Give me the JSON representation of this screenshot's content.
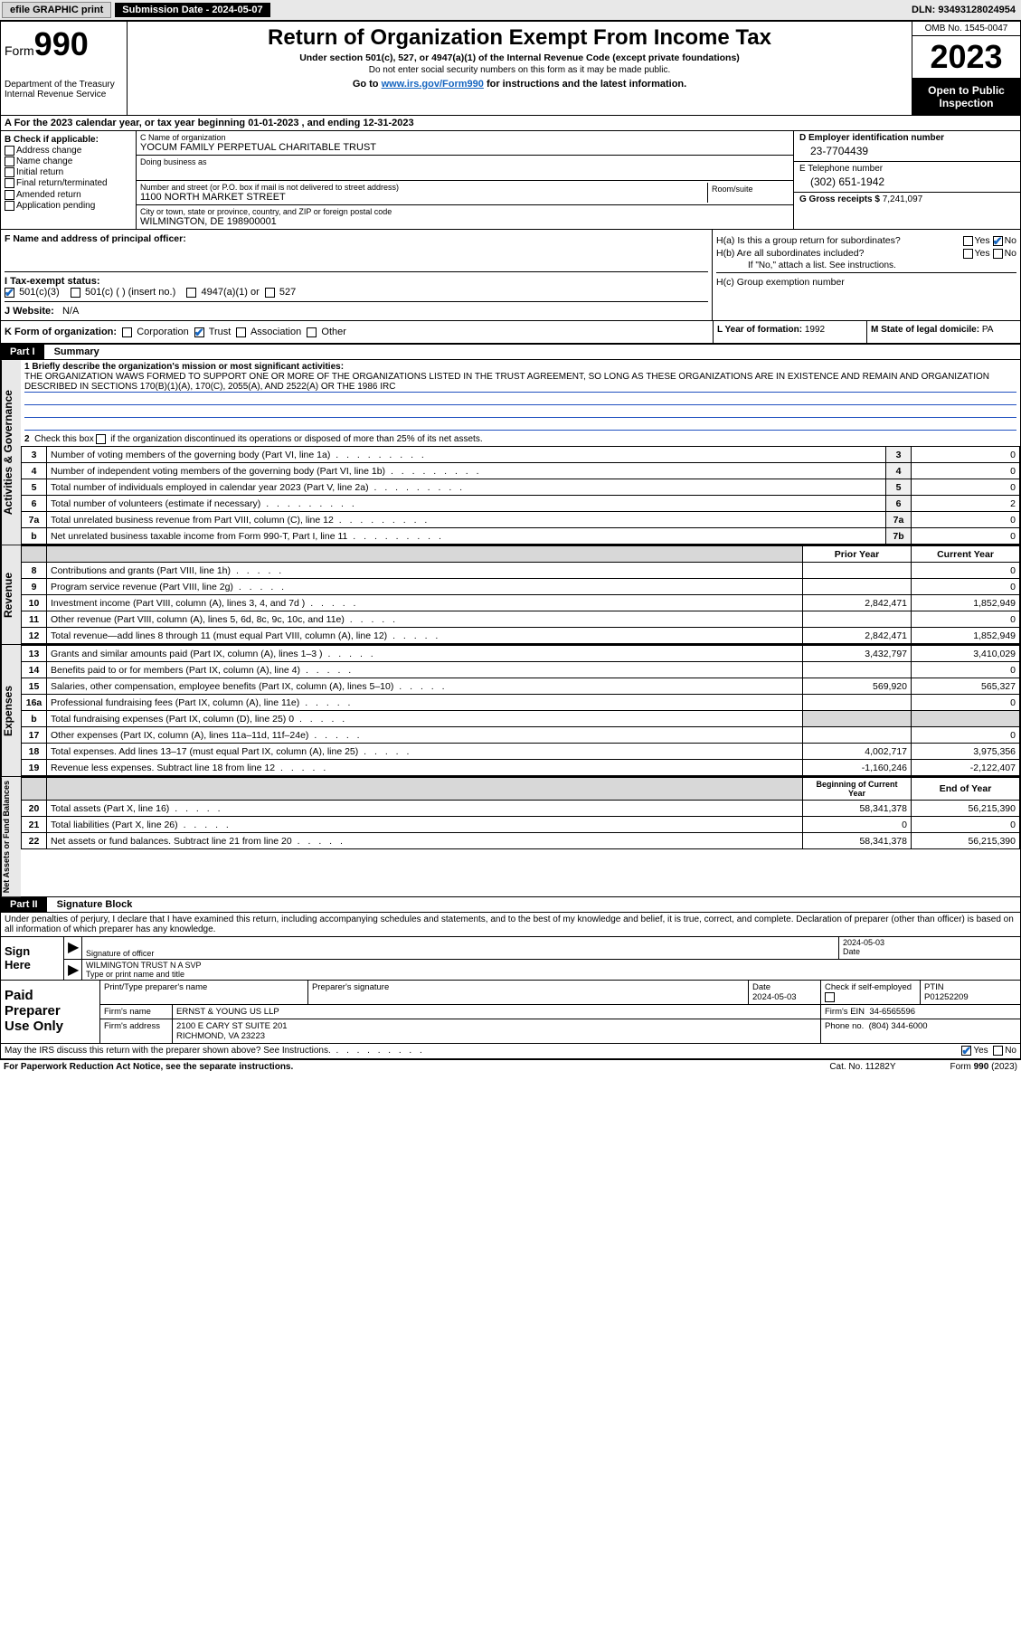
{
  "topbar": {
    "efile": "efile GRAPHIC print",
    "submission": "Submission Date - 2024-05-07",
    "dln": "DLN: 93493128024954"
  },
  "header": {
    "form_label": "Form",
    "form_number": "990",
    "title": "Return of Organization Exempt From Income Tax",
    "subtitle": "Under section 501(c), 527, or 4947(a)(1) of the Internal Revenue Code (except private foundations)",
    "subtitle2": "Do not enter social security numbers on this form as it may be made public.",
    "instruction_prefix": "Go to ",
    "instruction_link": "www.irs.gov/Form990",
    "instruction_suffix": " for instructions and the latest information.",
    "dept": "Department of the Treasury",
    "irs": "Internal Revenue Service",
    "omb": "OMB No. 1545-0047",
    "year": "2023",
    "open_public": "Open to Public Inspection"
  },
  "section_a": {
    "text": "A   For the 2023 calendar year, or tax year beginning 01-01-2023    , and ending 12-31-2023"
  },
  "section_b": {
    "heading": "B Check if applicable:",
    "items": [
      "Address change",
      "Name change",
      "Initial return",
      "Final return/terminated",
      "Amended return",
      "Application pending"
    ]
  },
  "section_c": {
    "name_label": "C Name of organization",
    "name": "YOCUM FAMILY PERPETUAL CHARITABLE TRUST",
    "dba_label": "Doing business as",
    "street_label": "Number and street (or P.O. box if mail is not delivered to street address)",
    "room_label": "Room/suite",
    "street": "1100 NORTH MARKET STREET",
    "city_label": "City or town, state or province, country, and ZIP or foreign postal code",
    "city": "WILMINGTON, DE  198900001"
  },
  "section_d": {
    "label": "D Employer identification number",
    "value": "23-7704439"
  },
  "section_e": {
    "label": "E Telephone number",
    "value": "(302) 651-1942"
  },
  "section_g": {
    "label": "G Gross receipts $",
    "value": "7,241,097"
  },
  "section_f": {
    "label": "F  Name and address of principal officer:"
  },
  "section_h": {
    "ha": "H(a)  Is this a group return for subordinates?",
    "hb": "H(b)  Are all subordinates included?",
    "hb_note": "If \"No,\" attach a list. See instructions.",
    "hc": "H(c)  Group exemption number",
    "yes": "Yes",
    "no": "No"
  },
  "section_i": {
    "label": "I    Tax-exempt status:",
    "opt1": "501(c)(3)",
    "opt2": "501(c) (  ) (insert no.)",
    "opt3": "4947(a)(1) or",
    "opt4": "527"
  },
  "section_j": {
    "label": "J   Website:",
    "value": "N/A"
  },
  "section_k": {
    "label": "K Form of organization:",
    "opts": [
      "Corporation",
      "Trust",
      "Association",
      "Other"
    ]
  },
  "section_l": {
    "label": "L Year of formation:",
    "value": "1992"
  },
  "section_m": {
    "label": "M State of legal domicile:",
    "value": "PA"
  },
  "part1": {
    "hdr": "Part I",
    "title": "Summary",
    "line1_label": "1   Briefly describe the organization's mission or most significant activities:",
    "mission": "THE ORGANIZATION WAWS FORMED TO SUPPORT ONE OR MORE OF THE ORGANIZATIONS LISTED IN THE TRUST AGREEMENT, SO LONG AS THESE ORGANIZATIONS ARE IN EXISTENCE AND REMAIN AND ORGANIZATION DESCRIBED IN SECTIONS 170(B)(1)(A), 170(C), 2055(A), AND 2522(A) OR THE 1986 IRC",
    "line2": "2   Check this box    if the organization discontinued its operations or disposed of more than 25% of its net assets.",
    "governance_rows": [
      {
        "n": "3",
        "desc": "Number of voting members of the governing body (Part VI, line 1a)",
        "ln": "3",
        "val": "0"
      },
      {
        "n": "4",
        "desc": "Number of independent voting members of the governing body (Part VI, line 1b)",
        "ln": "4",
        "val": "0"
      },
      {
        "n": "5",
        "desc": "Total number of individuals employed in calendar year 2023 (Part V, line 2a)",
        "ln": "5",
        "val": "0"
      },
      {
        "n": "6",
        "desc": "Total number of volunteers (estimate if necessary)",
        "ln": "6",
        "val": "2"
      },
      {
        "n": "7a",
        "desc": "Total unrelated business revenue from Part VIII, column (C), line 12",
        "ln": "7a",
        "val": "0"
      },
      {
        "n": "b",
        "desc": "Net unrelated business taxable income from Form 990-T, Part I, line 11",
        "ln": "7b",
        "val": "0"
      }
    ],
    "prior_year": "Prior Year",
    "current_year": "Current Year",
    "revenue_rows": [
      {
        "n": "8",
        "desc": "Contributions and grants (Part VIII, line 1h)",
        "py": "",
        "cy": "0"
      },
      {
        "n": "9",
        "desc": "Program service revenue (Part VIII, line 2g)",
        "py": "",
        "cy": "0"
      },
      {
        "n": "10",
        "desc": "Investment income (Part VIII, column (A), lines 3, 4, and 7d )",
        "py": "2,842,471",
        "cy": "1,852,949"
      },
      {
        "n": "11",
        "desc": "Other revenue (Part VIII, column (A), lines 5, 6d, 8c, 9c, 10c, and 11e)",
        "py": "",
        "cy": "0"
      },
      {
        "n": "12",
        "desc": "Total revenue—add lines 8 through 11 (must equal Part VIII, column (A), line 12)",
        "py": "2,842,471",
        "cy": "1,852,949"
      }
    ],
    "expense_rows": [
      {
        "n": "13",
        "desc": "Grants and similar amounts paid (Part IX, column (A), lines 1–3 )",
        "py": "3,432,797",
        "cy": "3,410,029"
      },
      {
        "n": "14",
        "desc": "Benefits paid to or for members (Part IX, column (A), line 4)",
        "py": "",
        "cy": "0"
      },
      {
        "n": "15",
        "desc": "Salaries, other compensation, employee benefits (Part IX, column (A), lines 5–10)",
        "py": "569,920",
        "cy": "565,327"
      },
      {
        "n": "16a",
        "desc": "Professional fundraising fees (Part IX, column (A), line 11e)",
        "py": "",
        "cy": "0"
      },
      {
        "n": "b",
        "desc": "Total fundraising expenses (Part IX, column (D), line 25) 0",
        "py": "grey",
        "cy": "grey"
      },
      {
        "n": "17",
        "desc": "Other expenses (Part IX, column (A), lines 11a–11d, 11f–24e)",
        "py": "",
        "cy": "0"
      },
      {
        "n": "18",
        "desc": "Total expenses. Add lines 13–17 (must equal Part IX, column (A), line 25)",
        "py": "4,002,717",
        "cy": "3,975,356"
      },
      {
        "n": "19",
        "desc": "Revenue less expenses. Subtract line 18 from line 12",
        "py": "-1,160,246",
        "cy": "-2,122,407"
      }
    ],
    "begin_year": "Beginning of Current Year",
    "end_year": "End of Year",
    "netassets_rows": [
      {
        "n": "20",
        "desc": "Total assets (Part X, line 16)",
        "py": "58,341,378",
        "cy": "56,215,390"
      },
      {
        "n": "21",
        "desc": "Total liabilities (Part X, line 26)",
        "py": "0",
        "cy": "0"
      },
      {
        "n": "22",
        "desc": "Net assets or fund balances. Subtract line 21 from line 20",
        "py": "58,341,378",
        "cy": "56,215,390"
      }
    ],
    "vtab_gov": "Activities & Governance",
    "vtab_rev": "Revenue",
    "vtab_exp": "Expenses",
    "vtab_net": "Net Assets or Fund Balances"
  },
  "part2": {
    "hdr": "Part II",
    "title": "Signature Block",
    "perjury": "Under penalties of perjury, I declare that I have examined this return, including accompanying schedules and statements, and to the best of my knowledge and belief, it is true, correct, and complete. Declaration of preparer (other than officer) is based on all information of which preparer has any knowledge."
  },
  "sign": {
    "left1": "Sign",
    "left2": "Here",
    "sig_officer": "Signature of officer",
    "officer_name": "WILMINGTON TRUST N A  SVP",
    "type_name": "Type or print name and title",
    "date_label": "Date",
    "date": "2024-05-03"
  },
  "paid": {
    "left1": "Paid",
    "left2": "Preparer",
    "left3": "Use Only",
    "print_name": "Print/Type preparer's name",
    "prep_sig": "Preparer's signature",
    "date_label": "Date",
    "date": "2024-05-03",
    "check_label": "Check         if self-employed",
    "ptin_label": "PTIN",
    "ptin": "P01252209",
    "firm_name_label": "Firm's name",
    "firm_name": "ERNST & YOUNG US LLP",
    "firm_ein_label": "Firm's EIN",
    "firm_ein": "34-6565596",
    "firm_addr_label": "Firm's address",
    "firm_addr1": "2100 E CARY ST SUITE 201",
    "firm_addr2": "RICHMOND, VA  23223",
    "phone_label": "Phone no.",
    "phone": "(804) 344-6000"
  },
  "footer": {
    "may": "May the IRS discuss this return with the preparer shown above? See Instructions.",
    "yes": "Yes",
    "no": "No",
    "pra": "For Paperwork Reduction Act Notice, see the separate instructions.",
    "cat": "Cat. No. 11282Y",
    "form": "Form 990 (2023)"
  }
}
